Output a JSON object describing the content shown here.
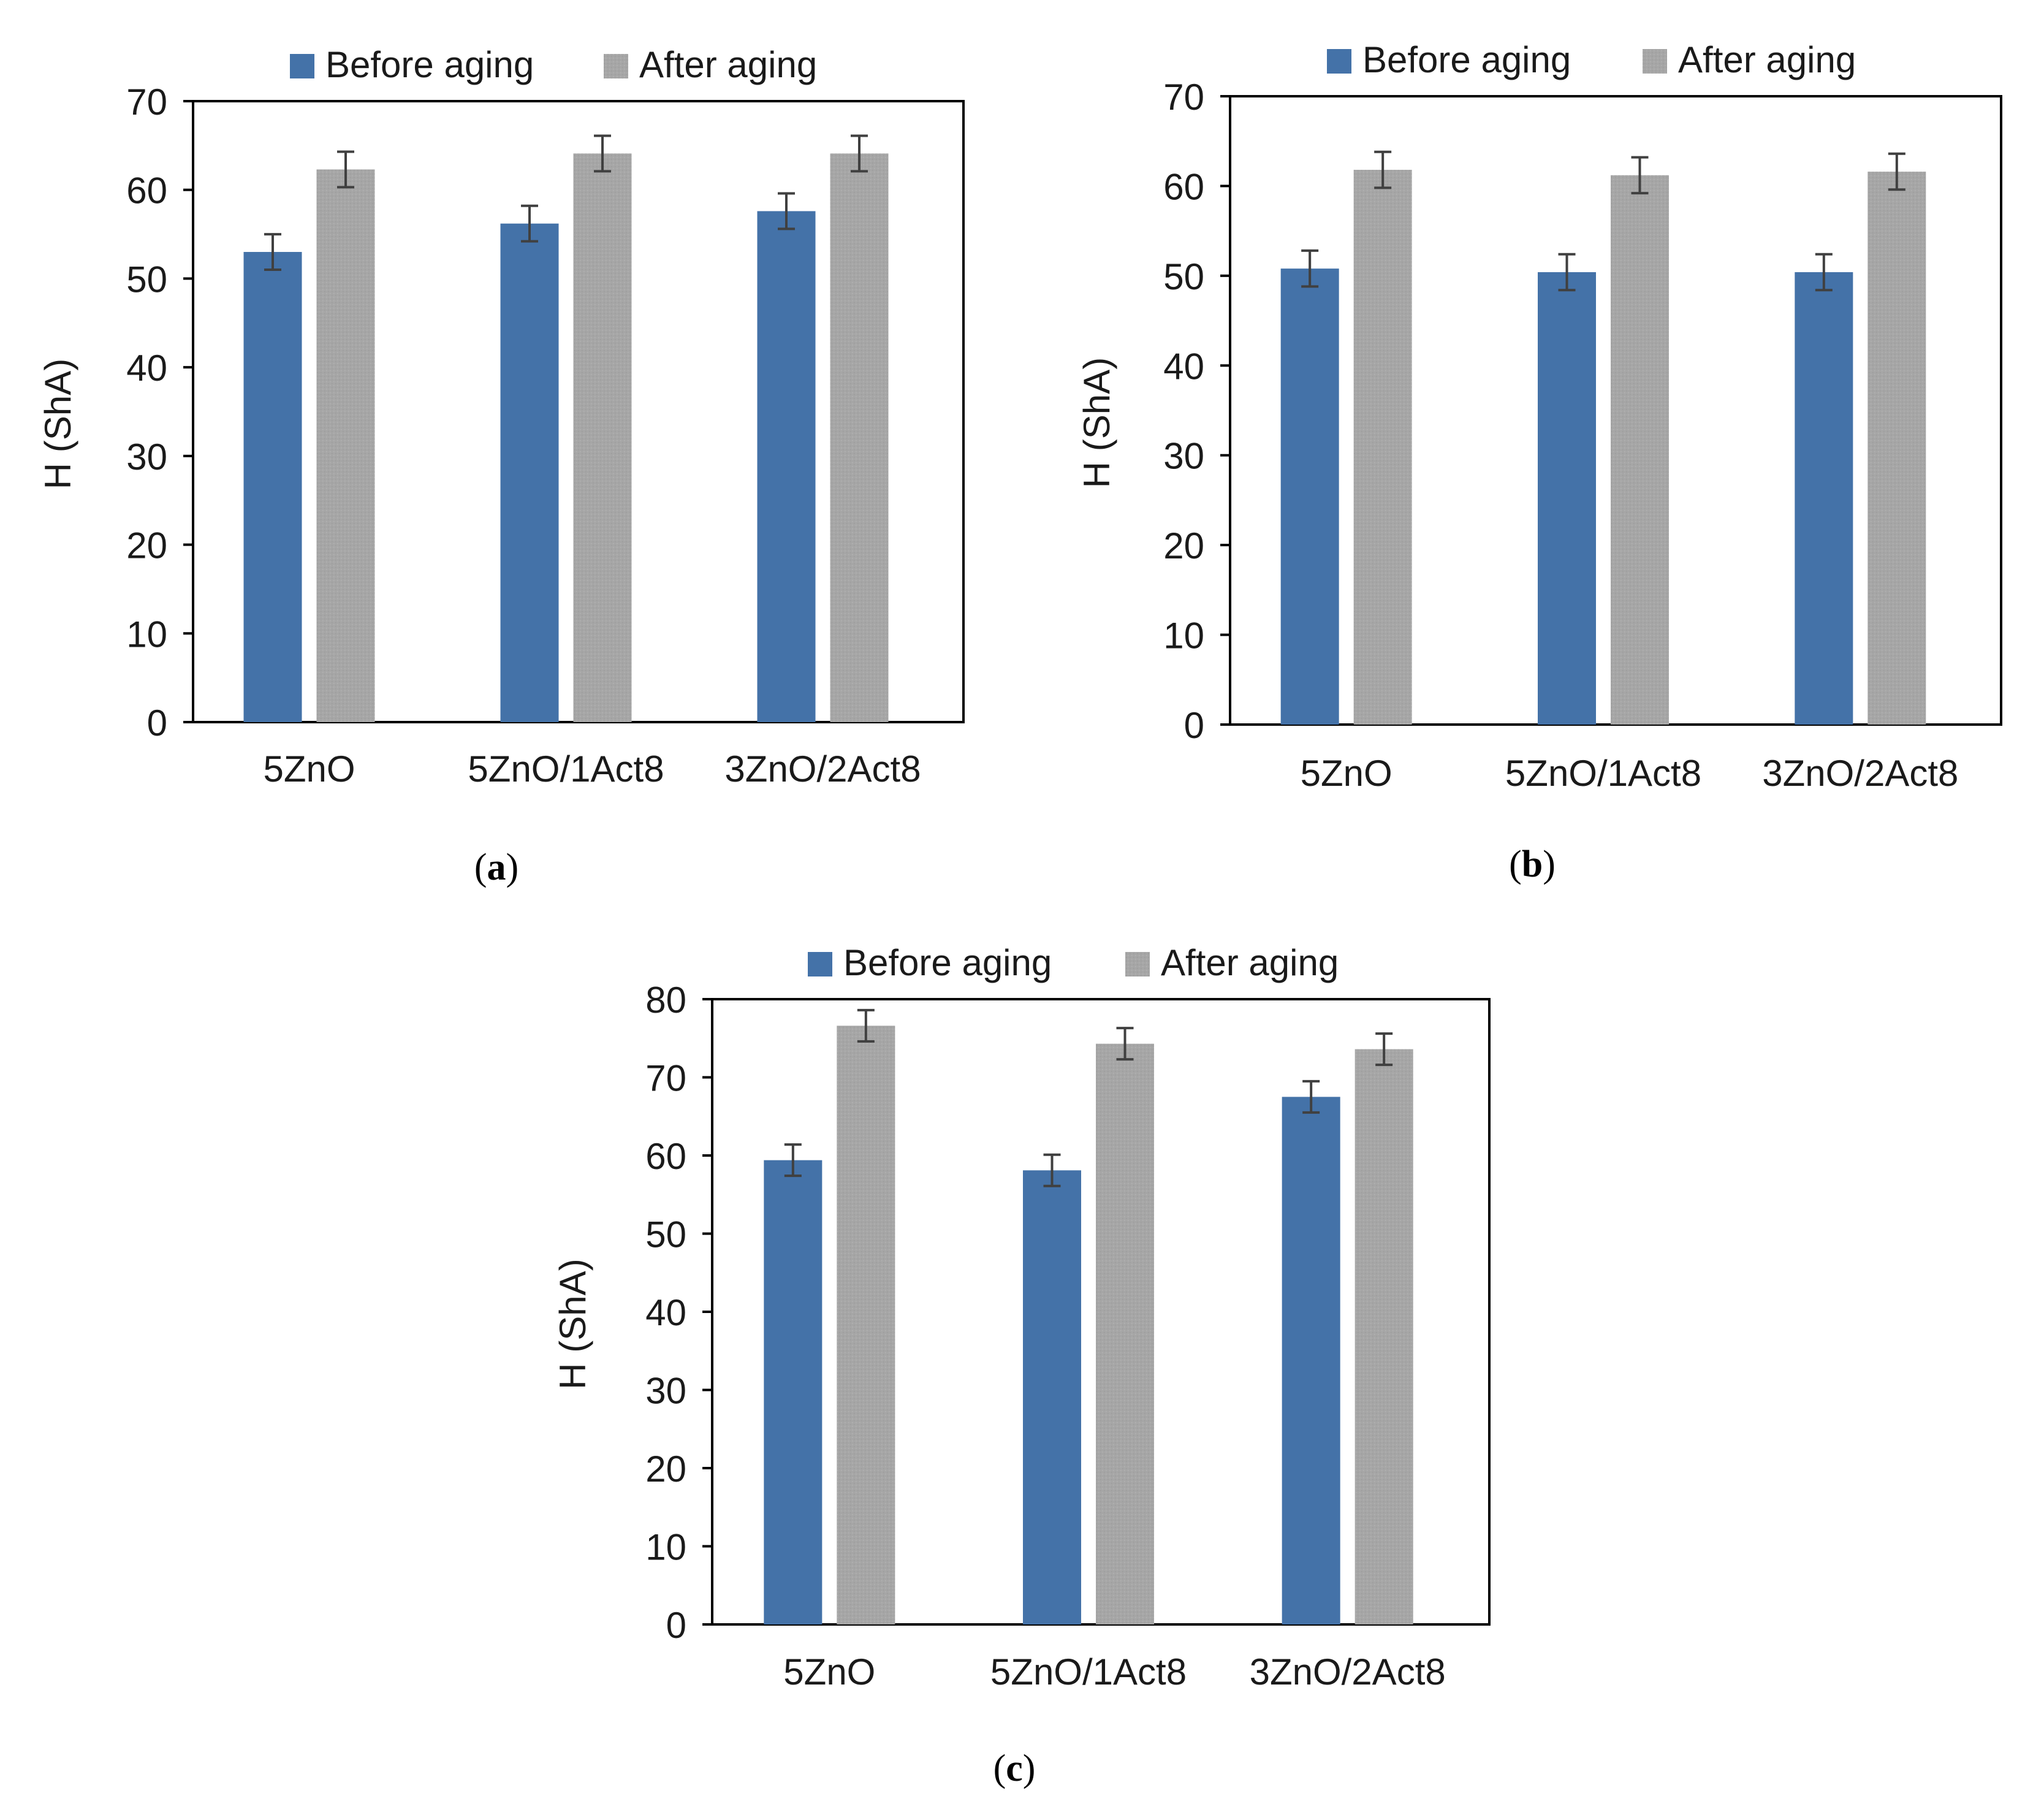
{
  "colors": {
    "before": "#4472a8",
    "after": "#a6a6a6",
    "axis": "#000000",
    "error": "#404040"
  },
  "legend": {
    "before_label": "Before aging",
    "after_label": "After aging"
  },
  "chart_data": [
    {
      "type": "bar",
      "panel": "a",
      "caption": "a",
      "ylabel": "H (ShA)",
      "xlabel": "",
      "ylim": [
        0,
        70
      ],
      "yticks": [
        "0",
        "10",
        "20",
        "30",
        "40",
        "50",
        "60",
        "70"
      ],
      "categories": [
        "5ZnO",
        "5ZnO/1Act8",
        "3ZnO/2Act8"
      ],
      "series": [
        {
          "name": "Before aging",
          "values": [
            53.0,
            56.2,
            57.6
          ],
          "errors": [
            2.0,
            2.0,
            2.0
          ]
        },
        {
          "name": "After aging",
          "values": [
            62.3,
            64.1,
            64.1
          ],
          "errors": [
            2.0,
            2.0,
            2.0
          ]
        }
      ]
    },
    {
      "type": "bar",
      "panel": "b",
      "caption": "b",
      "ylabel": "H (ShA)",
      "xlabel": "",
      "ylim": [
        0,
        70
      ],
      "yticks": [
        "0",
        "10",
        "20",
        "30",
        "40",
        "50",
        "60",
        "70"
      ],
      "categories": [
        "5ZnO",
        "5ZnO/1Act8",
        "3ZnO/2Act8"
      ],
      "series": [
        {
          "name": "Before aging",
          "values": [
            50.8,
            50.4,
            50.4
          ],
          "errors": [
            2.0,
            2.0,
            2.0
          ]
        },
        {
          "name": "After aging",
          "values": [
            61.8,
            61.2,
            61.6
          ],
          "errors": [
            2.0,
            2.0,
            2.0
          ]
        }
      ]
    },
    {
      "type": "bar",
      "panel": "c",
      "caption": "c",
      "ylabel": "H (ShA)",
      "xlabel": "",
      "ylim": [
        0,
        80
      ],
      "yticks": [
        "0",
        "10",
        "20",
        "30",
        "40",
        "50",
        "60",
        "70",
        "80"
      ],
      "categories": [
        "5ZnO",
        "5ZnO/1Act8",
        "3ZnO/2Act8"
      ],
      "series": [
        {
          "name": "Before aging",
          "values": [
            59.4,
            58.1,
            67.5
          ],
          "errors": [
            2.0,
            2.0,
            2.0
          ]
        },
        {
          "name": "After aging",
          "values": [
            76.6,
            74.3,
            73.6
          ],
          "errors": [
            2.0,
            2.0,
            2.0
          ]
        }
      ]
    }
  ]
}
